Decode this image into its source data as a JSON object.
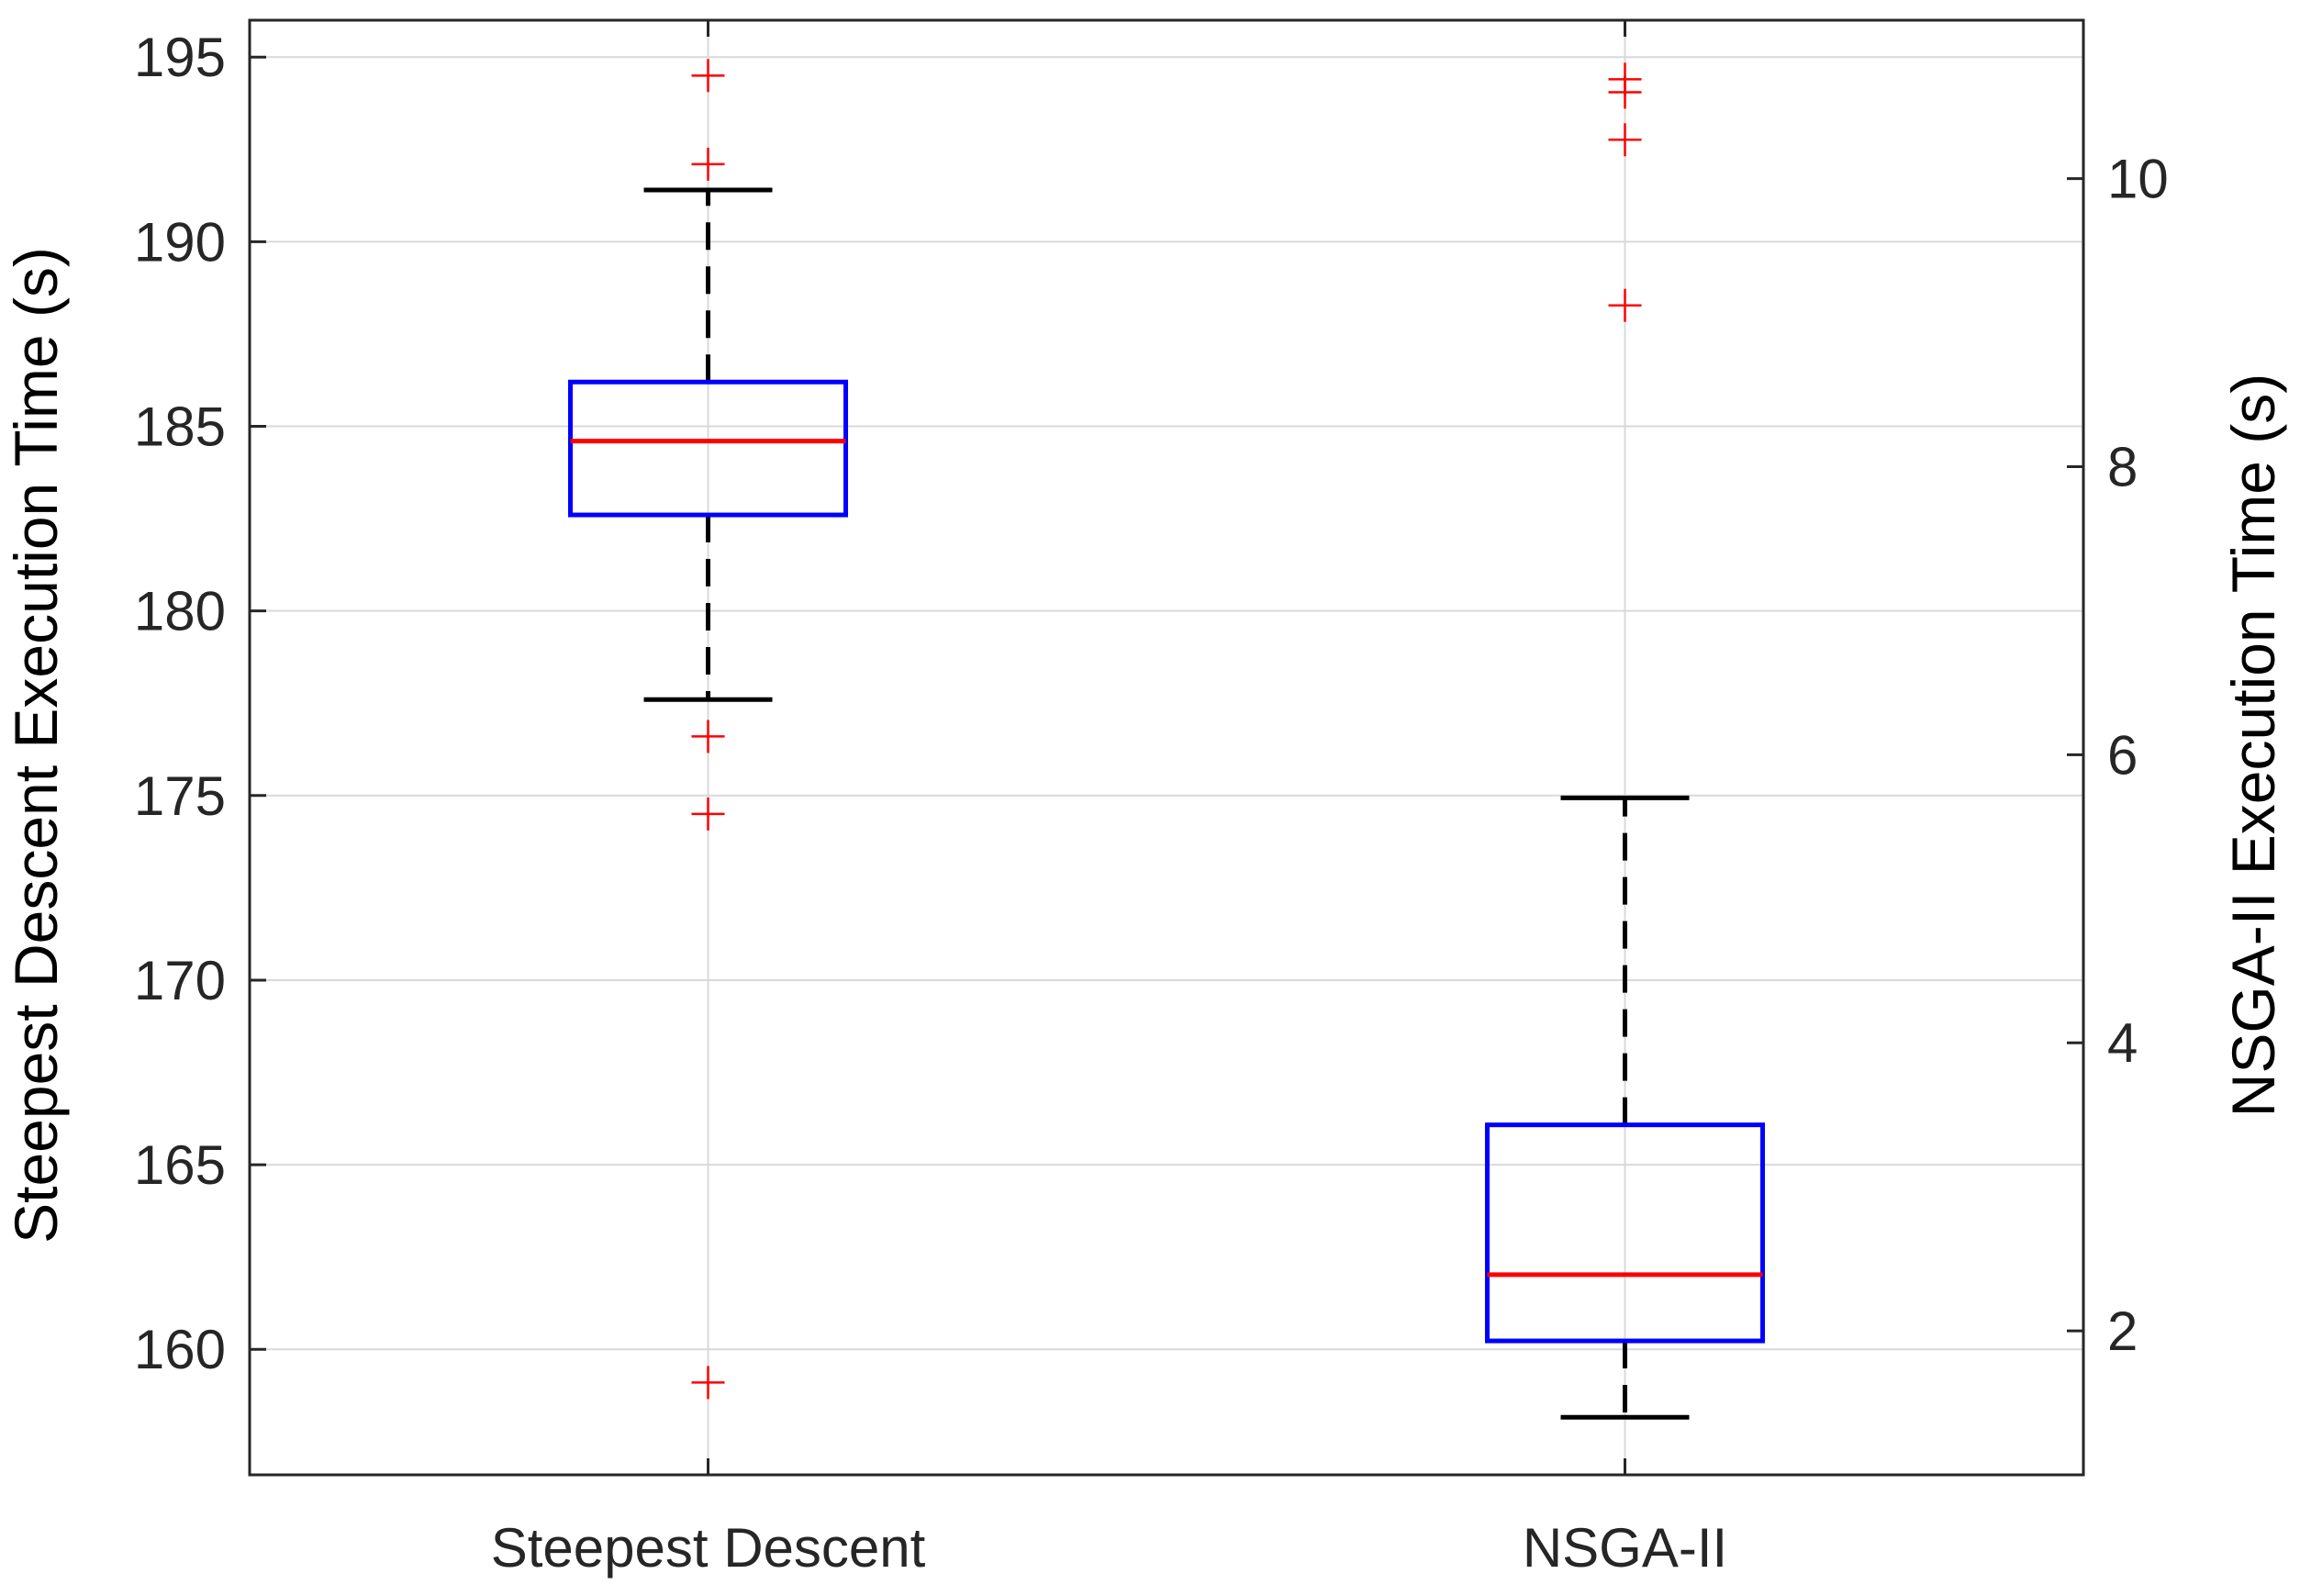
{
  "chart_data": {
    "type": "box",
    "categories": [
      "Steepest Descent",
      "NSGA-II"
    ],
    "xlabel": "",
    "ylabel_left": "Steepest Descent Execution Time (s)",
    "ylabel_right": "NSGA-II Execution Time (s)",
    "ylim_left": [
      156.6,
      196.0
    ],
    "yticks_left": [
      160,
      165,
      170,
      175,
      180,
      185,
      190,
      195
    ],
    "ylim_right": [
      1.0,
      11.1
    ],
    "yticks_right": [
      2,
      4,
      6,
      8,
      10
    ],
    "grid": true,
    "series": [
      {
        "name": "Steepest Descent",
        "axis": "left",
        "whisker_low": 177.6,
        "q1": 182.6,
        "median": 184.6,
        "q3": 186.2,
        "whisker_high": 191.4,
        "outliers": [
          194.5,
          192.1,
          176.6,
          174.5,
          159.1
        ]
      },
      {
        "name": "NSGA-II",
        "axis": "right",
        "whisker_low": 1.4,
        "q1": 1.93,
        "median": 2.39,
        "q3": 3.43,
        "whisker_high": 5.7,
        "outliers": [
          10.69,
          10.6,
          10.27,
          9.12
        ]
      }
    ],
    "colors": {
      "box": "#0000ff",
      "median": "#ff0000",
      "whisker": "#000000",
      "outlier": "#ff0000",
      "grid": "#d9d9d9",
      "axis": "#262626"
    }
  }
}
